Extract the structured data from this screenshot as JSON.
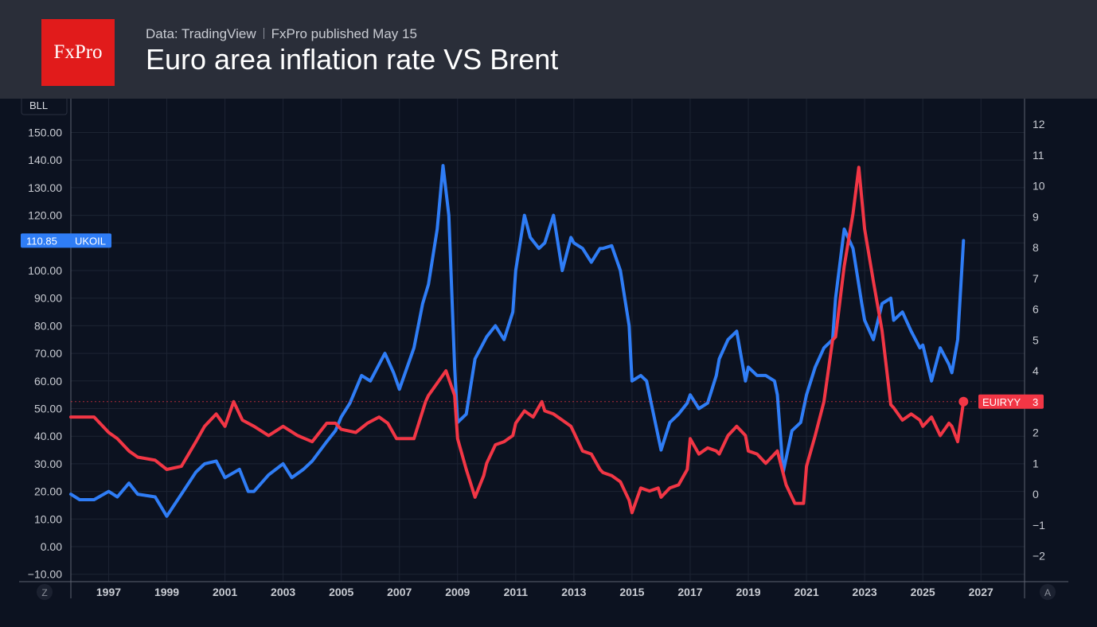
{
  "header": {
    "logo_text": "FxPro",
    "source": "Data: TradingView",
    "published": "FxPro published May 15",
    "title": "Euro area inflation rate VS Brent"
  },
  "chart_data": {
    "type": "line",
    "title": "Euro area inflation rate VS Brent",
    "left_axis": {
      "unit_label": "BLL",
      "range": [
        -10,
        150
      ],
      "ticks": [
        "150.00",
        "140.00",
        "130.00",
        "120.00",
        "110.00",
        "100.00",
        "90.00",
        "80.00",
        "70.00",
        "60.00",
        "50.00",
        "40.00",
        "30.00",
        "20.00",
        "10.00",
        "0.00",
        "−10.00"
      ]
    },
    "right_axis": {
      "range": [
        -2,
        12
      ],
      "ticks": [
        "12",
        "11",
        "10",
        "9",
        "8",
        "7",
        "6",
        "5",
        "4",
        "3",
        "2",
        "1",
        "0",
        "−1",
        "−2"
      ]
    },
    "x_axis": {
      "range": [
        1995.7,
        2028.5
      ],
      "ticks": [
        "1997",
        "1999",
        "2001",
        "2003",
        "2005",
        "2007",
        "2009",
        "2011",
        "2013",
        "2015",
        "2017",
        "2019",
        "2021",
        "2023",
        "2025",
        "2027"
      ]
    },
    "corner_labels": {
      "left": "Z",
      "right": "A"
    },
    "grid": true,
    "series": [
      {
        "name": "UKOIL",
        "axis": "left",
        "color": "#2f7df6",
        "last_value_label": "110.85",
        "points": [
          [
            1995.7,
            19
          ],
          [
            1996.0,
            17
          ],
          [
            1996.5,
            17
          ],
          [
            1997.0,
            20
          ],
          [
            1997.3,
            18
          ],
          [
            1997.7,
            23
          ],
          [
            1998.0,
            19
          ],
          [
            1998.6,
            18
          ],
          [
            1999.0,
            11
          ],
          [
            1999.5,
            19
          ],
          [
            2000.0,
            27
          ],
          [
            2000.3,
            30
          ],
          [
            2000.7,
            31
          ],
          [
            2001.0,
            25
          ],
          [
            2001.5,
            28
          ],
          [
            2001.8,
            20
          ],
          [
            2002.0,
            20
          ],
          [
            2002.5,
            26
          ],
          [
            2003.0,
            30
          ],
          [
            2003.3,
            25
          ],
          [
            2003.7,
            28
          ],
          [
            2004.0,
            31
          ],
          [
            2004.5,
            38
          ],
          [
            2004.8,
            42
          ],
          [
            2005.0,
            47
          ],
          [
            2005.3,
            52
          ],
          [
            2005.7,
            62
          ],
          [
            2006.0,
            60
          ],
          [
            2006.5,
            70
          ],
          [
            2006.8,
            63
          ],
          [
            2007.0,
            57
          ],
          [
            2007.5,
            72
          ],
          [
            2007.8,
            88
          ],
          [
            2008.0,
            95
          ],
          [
            2008.3,
            115
          ],
          [
            2008.5,
            138
          ],
          [
            2008.7,
            120
          ],
          [
            2008.9,
            65
          ],
          [
            2009.0,
            45
          ],
          [
            2009.3,
            48
          ],
          [
            2009.6,
            68
          ],
          [
            2010.0,
            76
          ],
          [
            2010.3,
            80
          ],
          [
            2010.6,
            75
          ],
          [
            2010.9,
            85
          ],
          [
            2011.0,
            100
          ],
          [
            2011.3,
            120
          ],
          [
            2011.5,
            112
          ],
          [
            2011.8,
            108
          ],
          [
            2012.0,
            110
          ],
          [
            2012.3,
            120
          ],
          [
            2012.6,
            100
          ],
          [
            2012.9,
            112
          ],
          [
            2013.0,
            110
          ],
          [
            2013.3,
            108
          ],
          [
            2013.6,
            103
          ],
          [
            2013.9,
            108
          ],
          [
            2014.0,
            108
          ],
          [
            2014.3,
            109
          ],
          [
            2014.6,
            100
          ],
          [
            2014.9,
            80
          ],
          [
            2015.0,
            60
          ],
          [
            2015.3,
            62
          ],
          [
            2015.5,
            60
          ],
          [
            2015.8,
            45
          ],
          [
            2016.0,
            35
          ],
          [
            2016.3,
            45
          ],
          [
            2016.6,
            48
          ],
          [
            2016.9,
            52
          ],
          [
            2017.0,
            55
          ],
          [
            2017.3,
            50
          ],
          [
            2017.6,
            52
          ],
          [
            2017.9,
            62
          ],
          [
            2018.0,
            68
          ],
          [
            2018.3,
            75
          ],
          [
            2018.6,
            78
          ],
          [
            2018.9,
            60
          ],
          [
            2019.0,
            65
          ],
          [
            2019.3,
            62
          ],
          [
            2019.6,
            62
          ],
          [
            2019.9,
            60
          ],
          [
            2020.0,
            55
          ],
          [
            2020.2,
            27
          ],
          [
            2020.5,
            42
          ],
          [
            2020.8,
            45
          ],
          [
            2021.0,
            55
          ],
          [
            2021.3,
            65
          ],
          [
            2021.6,
            72
          ],
          [
            2021.9,
            75
          ],
          [
            2022.0,
            90
          ],
          [
            2022.3,
            115
          ],
          [
            2022.6,
            108
          ],
          [
            2022.9,
            88
          ],
          [
            2023.0,
            82
          ],
          [
            2023.3,
            75
          ],
          [
            2023.6,
            88
          ],
          [
            2023.9,
            90
          ],
          [
            2024.0,
            82
          ],
          [
            2024.3,
            85
          ],
          [
            2024.6,
            78
          ],
          [
            2024.9,
            72
          ],
          [
            2025.0,
            73
          ],
          [
            2025.3,
            60
          ],
          [
            2025.6,
            72
          ],
          [
            2025.9,
            66
          ],
          [
            2026.0,
            63
          ],
          [
            2026.2,
            75
          ],
          [
            2026.4,
            110.85
          ]
        ]
      },
      {
        "name": "EUIRYY",
        "axis": "right",
        "color": "#f23645",
        "last_value_label": "3",
        "points": [
          [
            1995.7,
            2.5
          ],
          [
            1996.0,
            2.5
          ],
          [
            1996.5,
            2.5
          ],
          [
            1997.0,
            2.0
          ],
          [
            1997.3,
            1.8
          ],
          [
            1997.7,
            1.4
          ],
          [
            1998.0,
            1.2
          ],
          [
            1998.6,
            1.1
          ],
          [
            1999.0,
            0.8
          ],
          [
            1999.5,
            0.9
          ],
          [
            2000.0,
            1.7
          ],
          [
            2000.3,
            2.2
          ],
          [
            2000.7,
            2.6
          ],
          [
            2001.0,
            2.2
          ],
          [
            2001.3,
            3.0
          ],
          [
            2001.6,
            2.4
          ],
          [
            2002.0,
            2.2
          ],
          [
            2002.5,
            1.9
          ],
          [
            2003.0,
            2.2
          ],
          [
            2003.5,
            1.9
          ],
          [
            2004.0,
            1.7
          ],
          [
            2004.5,
            2.3
          ],
          [
            2004.8,
            2.3
          ],
          [
            2005.0,
            2.1
          ],
          [
            2005.5,
            2.0
          ],
          [
            2005.9,
            2.3
          ],
          [
            2006.3,
            2.5
          ],
          [
            2006.6,
            2.3
          ],
          [
            2006.9,
            1.8
          ],
          [
            2007.0,
            1.8
          ],
          [
            2007.5,
            1.8
          ],
          [
            2007.9,
            3.0
          ],
          [
            2008.0,
            3.2
          ],
          [
            2008.3,
            3.6
          ],
          [
            2008.6,
            4.0
          ],
          [
            2008.9,
            3.2
          ],
          [
            2009.0,
            1.8
          ],
          [
            2009.3,
            0.8
          ],
          [
            2009.6,
            -0.1
          ],
          [
            2009.9,
            0.6
          ],
          [
            2010.0,
            1.0
          ],
          [
            2010.3,
            1.6
          ],
          [
            2010.6,
            1.7
          ],
          [
            2010.9,
            1.9
          ],
          [
            2011.0,
            2.3
          ],
          [
            2011.3,
            2.7
          ],
          [
            2011.6,
            2.5
          ],
          [
            2011.9,
            3.0
          ],
          [
            2012.0,
            2.7
          ],
          [
            2012.3,
            2.6
          ],
          [
            2012.6,
            2.4
          ],
          [
            2012.9,
            2.2
          ],
          [
            2013.0,
            2.0
          ],
          [
            2013.3,
            1.4
          ],
          [
            2013.6,
            1.3
          ],
          [
            2013.9,
            0.8
          ],
          [
            2014.0,
            0.7
          ],
          [
            2014.3,
            0.6
          ],
          [
            2014.6,
            0.4
          ],
          [
            2014.9,
            -0.2
          ],
          [
            2015.0,
            -0.6
          ],
          [
            2015.3,
            0.2
          ],
          [
            2015.6,
            0.1
          ],
          [
            2015.9,
            0.2
          ],
          [
            2016.0,
            -0.1
          ],
          [
            2016.3,
            0.2
          ],
          [
            2016.6,
            0.3
          ],
          [
            2016.9,
            0.8
          ],
          [
            2017.0,
            1.8
          ],
          [
            2017.3,
            1.3
          ],
          [
            2017.6,
            1.5
          ],
          [
            2017.9,
            1.4
          ],
          [
            2018.0,
            1.3
          ],
          [
            2018.3,
            1.9
          ],
          [
            2018.6,
            2.2
          ],
          [
            2018.9,
            1.9
          ],
          [
            2019.0,
            1.4
          ],
          [
            2019.3,
            1.3
          ],
          [
            2019.6,
            1.0
          ],
          [
            2019.9,
            1.3
          ],
          [
            2020.0,
            1.4
          ],
          [
            2020.3,
            0.3
          ],
          [
            2020.6,
            -0.3
          ],
          [
            2020.9,
            -0.3
          ],
          [
            2021.0,
            0.9
          ],
          [
            2021.3,
            1.9
          ],
          [
            2021.6,
            3.0
          ],
          [
            2021.9,
            5.0
          ],
          [
            2022.0,
            5.1
          ],
          [
            2022.3,
            7.4
          ],
          [
            2022.6,
            9.1
          ],
          [
            2022.8,
            10.6
          ],
          [
            2023.0,
            8.6
          ],
          [
            2023.3,
            6.9
          ],
          [
            2023.6,
            5.3
          ],
          [
            2023.9,
            2.9
          ],
          [
            2024.0,
            2.8
          ],
          [
            2024.3,
            2.4
          ],
          [
            2024.6,
            2.6
          ],
          [
            2024.9,
            2.4
          ],
          [
            2025.0,
            2.2
          ],
          [
            2025.3,
            2.5
          ],
          [
            2025.6,
            1.9
          ],
          [
            2025.9,
            2.3
          ],
          [
            2026.0,
            2.2
          ],
          [
            2026.2,
            1.7
          ],
          [
            2026.4,
            3.0
          ]
        ]
      }
    ]
  }
}
